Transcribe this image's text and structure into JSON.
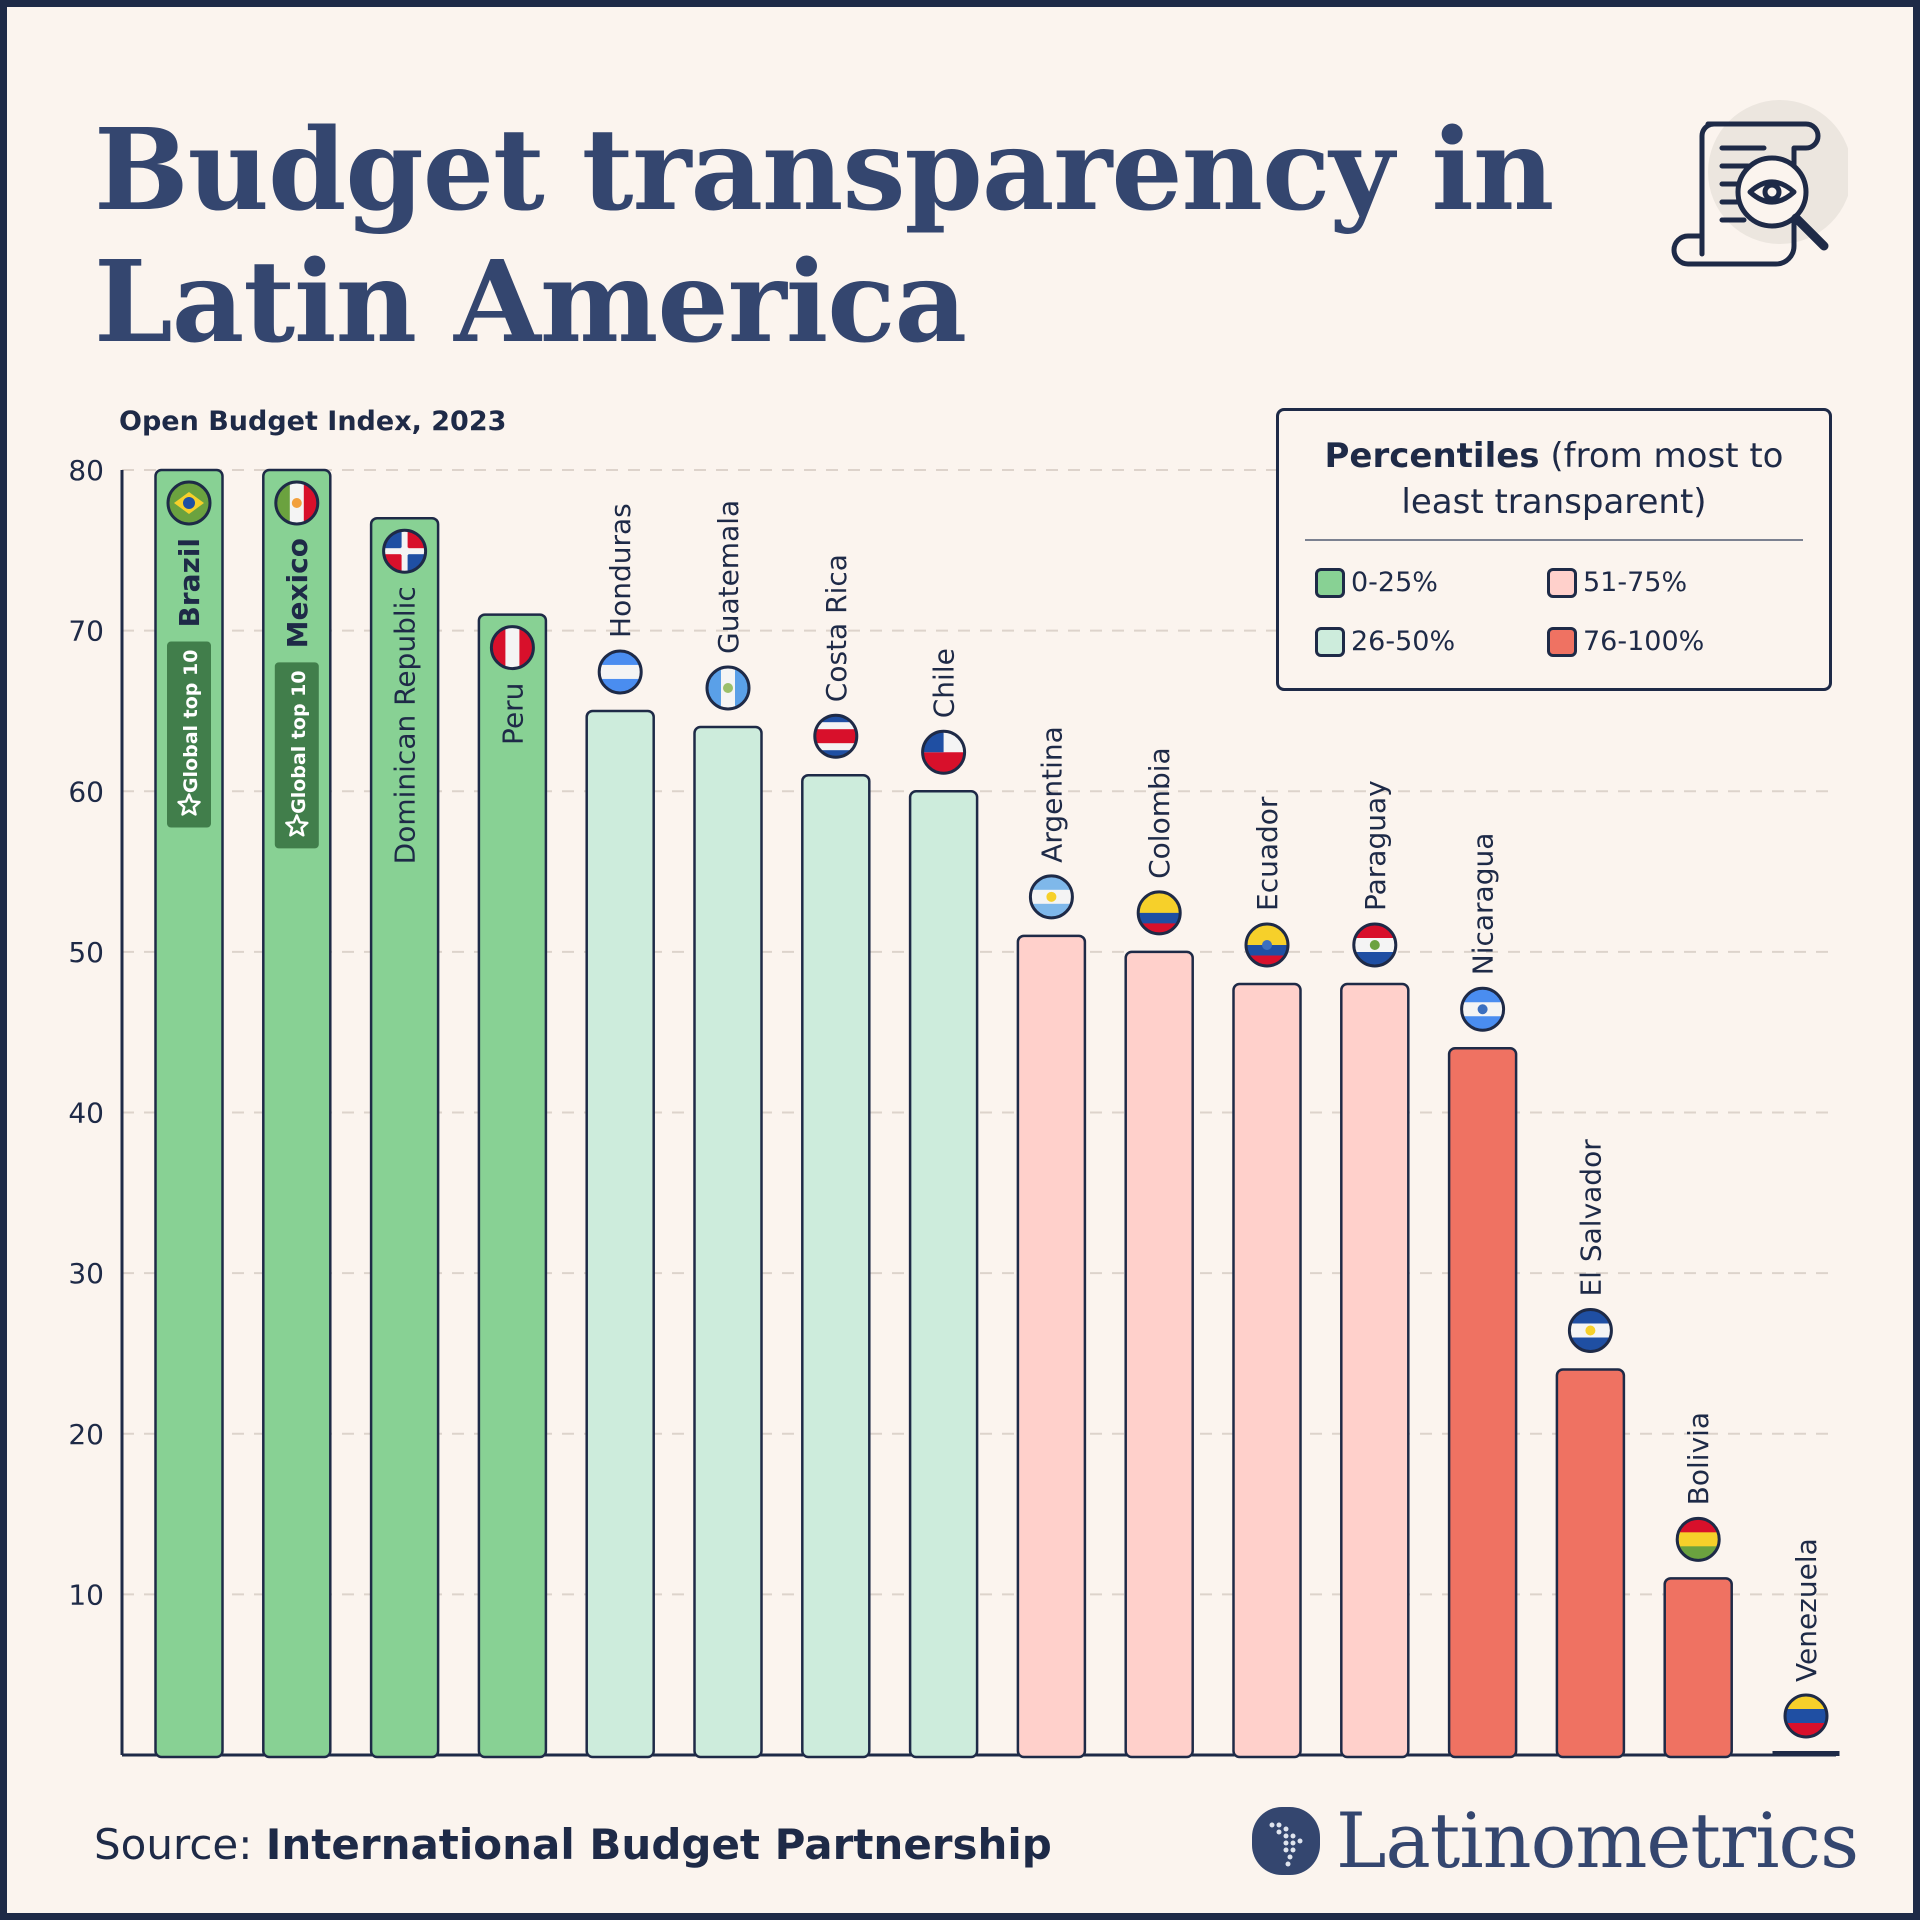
{
  "title": {
    "line1": "Budget transparency in",
    "line2": "Latin America"
  },
  "subtitle": "Open Budget Index, 2023",
  "legend": {
    "title_bold": "Percentiles",
    "title_rest": "(from most to least transparent)",
    "items": [
      {
        "label": "0-25%",
        "color": "#88d194"
      },
      {
        "label": "51-75%",
        "color": "#ffd0cb"
      },
      {
        "label": "26-50%",
        "color": "#cdecdc"
      },
      {
        "label": "76-100%",
        "color": "#ef7262"
      }
    ]
  },
  "badge_label": "Global top 10",
  "source": {
    "prefix": "Source:",
    "name": "International Budget Partnership"
  },
  "brand": "Latinometrics",
  "header_icon": "document-magnifier-eye-icon",
  "chart_data": {
    "type": "bar",
    "title": "Open Budget Index, 2023",
    "xlabel": "",
    "ylabel": "",
    "ylim": [
      0,
      80
    ],
    "yticks": [
      10,
      20,
      30,
      40,
      50,
      60,
      70,
      80
    ],
    "grid": true,
    "legend_placement": "top-right",
    "categories": [
      "Brazil",
      "Mexico",
      "Dominican Republic",
      "Peru",
      "Honduras",
      "Guatemala",
      "Costa Rica",
      "Chile",
      "Argentina",
      "Colombia",
      "Ecuador",
      "Paraguay",
      "Nicaragua",
      "El Salvador",
      "Bolivia",
      "Venezuela"
    ],
    "values": [
      80,
      80,
      77,
      71,
      65,
      64,
      61,
      60,
      51,
      50,
      48,
      48,
      44,
      24,
      11,
      0
    ],
    "percentile_group": [
      "0-25%",
      "0-25%",
      "0-25%",
      "0-25%",
      "26-50%",
      "26-50%",
      "26-50%",
      "26-50%",
      "51-75%",
      "51-75%",
      "51-75%",
      "51-75%",
      "76-100%",
      "76-100%",
      "76-100%",
      "76-100%"
    ],
    "global_top_10": [
      "Brazil",
      "Mexico"
    ],
    "flags": [
      {
        "dir": "h",
        "colors": [
          "#6ba23f"
        ],
        "emblem": "#f6d02a"
      },
      {
        "dir": "v",
        "colors": [
          "#6ba23f",
          "#f4f4f4",
          "#d8102b"
        ],
        "emblem": "#f2a03d"
      },
      {
        "dir": "q",
        "colors": [
          "#1f4fa3",
          "#d8102b",
          "#d8102b",
          "#1f4fa3"
        ],
        "emblem": "#f4f4f4"
      },
      {
        "dir": "v",
        "colors": [
          "#d8102b",
          "#f4f4f4",
          "#d8102b"
        ]
      },
      {
        "dir": "h",
        "colors": [
          "#4a8df0",
          "#f4f4f4",
          "#4a8df0"
        ]
      },
      {
        "dir": "v",
        "colors": [
          "#5aa0e8",
          "#f4f4f4",
          "#5aa0e8"
        ],
        "emblem": "#9bbf6a"
      },
      {
        "dir": "h",
        "colors": [
          "#1f4fa3",
          "#f4f4f4",
          "#d8102b",
          "#d8102b",
          "#f4f4f4",
          "#1f4fa3"
        ]
      },
      {
        "dir": "h",
        "colors": [
          "#f4f4f4",
          "#d8102b"
        ],
        "canton": "#1f4fa3"
      },
      {
        "dir": "h",
        "colors": [
          "#7fb8ea",
          "#f4f4f4",
          "#7fb8ea"
        ],
        "emblem": "#f6d02a"
      },
      {
        "dir": "h",
        "colors": [
          "#f6d02a",
          "#f6d02a",
          "#1f4fa3",
          "#d8102b"
        ]
      },
      {
        "dir": "h",
        "colors": [
          "#f6d02a",
          "#f6d02a",
          "#1f4fa3",
          "#d8102b"
        ],
        "emblem": "#3b6fbf"
      },
      {
        "dir": "h",
        "colors": [
          "#d8102b",
          "#f4f4f4",
          "#1f4fa3"
        ],
        "emblem": "#6ba23f"
      },
      {
        "dir": "h",
        "colors": [
          "#4a8df0",
          "#f4f4f4",
          "#4a8df0"
        ],
        "emblem": "#3b6fbf"
      },
      {
        "dir": "h",
        "colors": [
          "#1f4fa3",
          "#f4f4f4",
          "#1f4fa3"
        ],
        "emblem": "#f6d02a"
      },
      {
        "dir": "h",
        "colors": [
          "#d8102b",
          "#f6d02a",
          "#6ba23f"
        ]
      },
      {
        "dir": "h",
        "colors": [
          "#f6d02a",
          "#1f4fa3",
          "#d8102b"
        ]
      }
    ]
  },
  "colors": {
    "0-25%": "#88d194",
    "26-50%": "#cdecdc",
    "51-75%": "#ffd0cb",
    "76-100%": "#ef7262",
    "ink": "#1e2a47",
    "title": "#34466f",
    "badge": "#417e4b",
    "background": "#fbf4ee"
  }
}
